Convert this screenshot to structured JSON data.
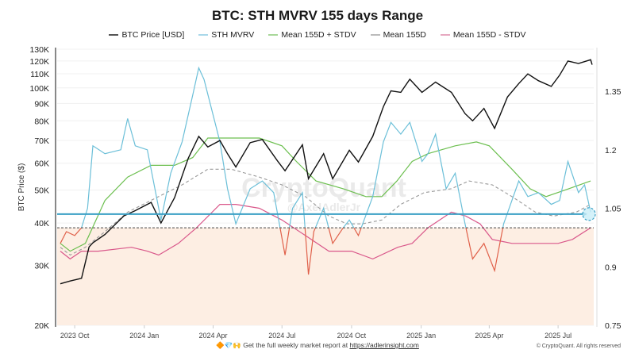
{
  "title": "BTC: STH MVRV 155 days Range",
  "footer": {
    "emoji": "🔶💎🙌",
    "text": "Get the full weekly market report at",
    "link": "https://adlerinsight.com",
    "copyright": "© CryptoQuant. All rights reserved"
  },
  "watermark": {
    "brand": "CryptoQuant",
    "handle": "@AxelAdlerJr"
  },
  "colors": {
    "price": "#111111",
    "mvrv": "#6bbfd8",
    "mvrv_below": "#e0604a",
    "upper": "#6cbf4f",
    "mean": "#999999",
    "lower": "#d9578a",
    "hline": "#3a9fc4",
    "zone": "#fdeee3"
  },
  "chart_data": {
    "type": "line",
    "title": "BTC: STH MVRV 155 days Range",
    "ylabel": "BTC Price ($)",
    "y_left": {
      "scale": "log",
      "range": [
        20000,
        130000
      ],
      "ticks": [
        "20K",
        "30K",
        "40K",
        "50K",
        "60K",
        "70K",
        "80K",
        "90K",
        "100K",
        "110K",
        "120K",
        "130K"
      ],
      "tick_values": [
        20000,
        30000,
        40000,
        50000,
        60000,
        70000,
        80000,
        90000,
        100000,
        110000,
        120000,
        130000
      ]
    },
    "y_right": {
      "scale": "linear",
      "range": [
        0.75,
        1.4
      ],
      "ticks": [
        "0.75",
        "0.9",
        "1.05",
        "1.2",
        "1.35"
      ],
      "tick_values": [
        0.75,
        0.9,
        1.05,
        1.2,
        1.35
      ]
    },
    "x_range": [
      "2023-09-12",
      "2025-08-15"
    ],
    "x_ticks": [
      {
        "label": "2023 Oct",
        "date": "2023-10-01"
      },
      {
        "label": "2024 Jan",
        "date": "2024-01-01"
      },
      {
        "label": "2024 Apr",
        "date": "2024-04-01"
      },
      {
        "label": "2024 Jul",
        "date": "2024-07-01"
      },
      {
        "label": "2024 Oct",
        "date": "2024-10-01"
      },
      {
        "label": "2025 Jan",
        "date": "2025-01-01"
      },
      {
        "label": "2025 Apr",
        "date": "2025-04-01"
      },
      {
        "label": "2025 Jul",
        "date": "2025-07-01"
      }
    ],
    "legend": [
      "BTC Price [USD]",
      "STH MVRV",
      "Mean 155D + STDV",
      "Mean 155D",
      "Mean 155D - STDV"
    ],
    "legend_position": "top",
    "reference_lines": [
      {
        "name": "current-level",
        "axis": "right",
        "value": 1.035,
        "style": "solid"
      },
      {
        "name": "breakeven",
        "axis": "right",
        "value": 1.0,
        "style": "dashed"
      }
    ],
    "highlight_zone": {
      "axis": "right",
      "from": 0.75,
      "to": 1.0
    },
    "series": [
      {
        "name": "BTC Price [USD]",
        "axis": "left",
        "x": [
          "2023-09-12",
          "2023-09-25",
          "2023-10-10",
          "2023-10-20",
          "2023-10-25",
          "2023-11-10",
          "2023-12-05",
          "2023-12-20",
          "2024-01-10",
          "2024-01-23",
          "2024-02-10",
          "2024-02-28",
          "2024-03-13",
          "2024-03-25",
          "2024-04-10",
          "2024-04-20",
          "2024-05-01",
          "2024-05-20",
          "2024-06-05",
          "2024-06-25",
          "2024-07-05",
          "2024-07-28",
          "2024-08-05",
          "2024-08-25",
          "2024-09-06",
          "2024-09-28",
          "2024-10-10",
          "2024-10-29",
          "2024-11-12",
          "2024-11-22",
          "2024-12-05",
          "2024-12-17",
          "2025-01-02",
          "2025-01-20",
          "2025-02-10",
          "2025-02-28",
          "2025-03-10",
          "2025-03-25",
          "2025-04-08",
          "2025-04-25",
          "2025-05-10",
          "2025-05-22",
          "2025-06-05",
          "2025-06-22",
          "2025-07-03",
          "2025-07-14",
          "2025-07-28",
          "2025-08-13",
          "2025-08-15"
        ],
        "values": [
          26500,
          27000,
          27500,
          34000,
          35000,
          37000,
          42000,
          43500,
          46000,
          40000,
          47500,
          62000,
          72000,
          67000,
          70000,
          64000,
          58500,
          69000,
          70500,
          61000,
          57000,
          68000,
          54000,
          64000,
          54000,
          65500,
          60500,
          72000,
          88000,
          98000,
          97000,
          106000,
          97000,
          104000,
          97000,
          84000,
          80000,
          87000,
          76000,
          94000,
          103000,
          110000,
          105000,
          101000,
          109000,
          120000,
          118000,
          121000,
          117000
        ]
      },
      {
        "name": "STH MVRV",
        "axis": "right",
        "x": [
          "2023-09-12",
          "2023-09-20",
          "2023-10-01",
          "2023-10-10",
          "2023-10-18",
          "2023-10-25",
          "2023-11-10",
          "2023-12-01",
          "2023-12-10",
          "2023-12-20",
          "2024-01-05",
          "2024-01-23",
          "2024-02-05",
          "2024-02-20",
          "2024-03-05",
          "2024-03-13",
          "2024-03-20",
          "2024-04-10",
          "2024-04-20",
          "2024-05-01",
          "2024-05-20",
          "2024-06-05",
          "2024-06-20",
          "2024-07-05",
          "2024-07-15",
          "2024-07-28",
          "2024-08-05",
          "2024-08-12",
          "2024-08-25",
          "2024-09-06",
          "2024-09-20",
          "2024-09-28",
          "2024-10-10",
          "2024-10-29",
          "2024-11-12",
          "2024-11-22",
          "2024-12-05",
          "2024-12-17",
          "2025-01-02",
          "2025-01-10",
          "2025-01-20",
          "2025-02-03",
          "2025-02-15",
          "2025-02-28",
          "2025-03-10",
          "2025-03-25",
          "2025-04-08",
          "2025-04-20",
          "2025-05-10",
          "2025-05-22",
          "2025-06-05",
          "2025-06-22",
          "2025-07-03",
          "2025-07-14",
          "2025-07-28",
          "2025-08-05",
          "2025-08-13"
        ],
        "values": [
          0.96,
          0.99,
          0.98,
          1.0,
          1.05,
          1.21,
          1.19,
          1.2,
          1.28,
          1.21,
          1.2,
          1.02,
          1.14,
          1.22,
          1.34,
          1.41,
          1.38,
          1.22,
          1.1,
          1.01,
          1.1,
          1.12,
          1.09,
          0.93,
          1.05,
          1.09,
          0.88,
          0.99,
          1.05,
          0.96,
          1.0,
          1.02,
          0.98,
          1.08,
          1.22,
          1.27,
          1.24,
          1.27,
          1.17,
          1.19,
          1.24,
          1.1,
          1.14,
          1.01,
          0.92,
          0.96,
          0.89,
          1.01,
          1.12,
          1.08,
          1.09,
          1.06,
          1.07,
          1.17,
          1.09,
          1.11,
          1.04
        ]
      },
      {
        "name": "Mean 155D + STDV",
        "axis": "right",
        "x": [
          "2023-09-12",
          "2023-09-25",
          "2023-10-15",
          "2023-11-10",
          "2023-12-10",
          "2024-01-10",
          "2024-02-10",
          "2024-03-05",
          "2024-03-25",
          "2024-04-25",
          "2024-06-01",
          "2024-07-01",
          "2024-07-20",
          "2024-08-15",
          "2024-09-20",
          "2024-10-20",
          "2024-11-10",
          "2024-11-30",
          "2024-12-20",
          "2025-01-10",
          "2025-02-15",
          "2025-03-15",
          "2025-04-01",
          "2025-05-01",
          "2025-05-25",
          "2025-06-15",
          "2025-07-15",
          "2025-08-13"
        ],
        "values": [
          0.96,
          0.94,
          0.96,
          1.07,
          1.13,
          1.16,
          1.16,
          1.18,
          1.23,
          1.23,
          1.23,
          1.21,
          1.17,
          1.12,
          1.1,
          1.08,
          1.08,
          1.12,
          1.17,
          1.19,
          1.21,
          1.22,
          1.21,
          1.15,
          1.1,
          1.08,
          1.1,
          1.12
        ]
      },
      {
        "name": "Mean 155D",
        "axis": "right",
        "x": [
          "2023-09-12",
          "2023-09-25",
          "2023-10-15",
          "2023-11-10",
          "2023-12-10",
          "2024-01-20",
          "2024-02-20",
          "2024-03-25",
          "2024-04-25",
          "2024-06-01",
          "2024-07-01",
          "2024-08-01",
          "2024-09-01",
          "2024-09-25",
          "2024-10-15",
          "2024-11-10",
          "2024-12-05",
          "2025-01-05",
          "2025-02-10",
          "2025-03-05",
          "2025-04-05",
          "2025-05-01",
          "2025-06-01",
          "2025-06-25",
          "2025-07-25",
          "2025-08-13"
        ],
        "values": [
          0.95,
          0.93,
          0.95,
          0.99,
          1.04,
          1.08,
          1.11,
          1.15,
          1.15,
          1.13,
          1.11,
          1.08,
          1.03,
          1.01,
          1.01,
          1.02,
          1.06,
          1.09,
          1.1,
          1.12,
          1.11,
          1.08,
          1.04,
          1.03,
          1.04,
          1.06
        ]
      },
      {
        "name": "Mean 155D - STDV",
        "axis": "right",
        "x": [
          "2023-09-12",
          "2023-09-25",
          "2023-10-10",
          "2023-11-01",
          "2023-12-15",
          "2024-01-05",
          "2024-01-20",
          "2024-02-15",
          "2024-03-10",
          "2024-04-10",
          "2024-05-01",
          "2024-06-01",
          "2024-07-01",
          "2024-08-01",
          "2024-09-01",
          "2024-10-01",
          "2024-10-29",
          "2024-12-01",
          "2024-12-20",
          "2025-01-10",
          "2025-02-10",
          "2025-03-01",
          "2025-03-20",
          "2025-04-05",
          "2025-05-01",
          "2025-06-01",
          "2025-07-01",
          "2025-07-20",
          "2025-08-13"
        ],
        "values": [
          0.94,
          0.92,
          0.94,
          0.94,
          0.95,
          0.94,
          0.93,
          0.96,
          1.0,
          1.06,
          1.06,
          1.05,
          1.02,
          0.98,
          0.94,
          0.94,
          0.92,
          0.95,
          0.96,
          1.0,
          1.04,
          1.03,
          1.01,
          0.97,
          0.96,
          0.96,
          0.96,
          0.97,
          1.0
        ]
      }
    ]
  }
}
